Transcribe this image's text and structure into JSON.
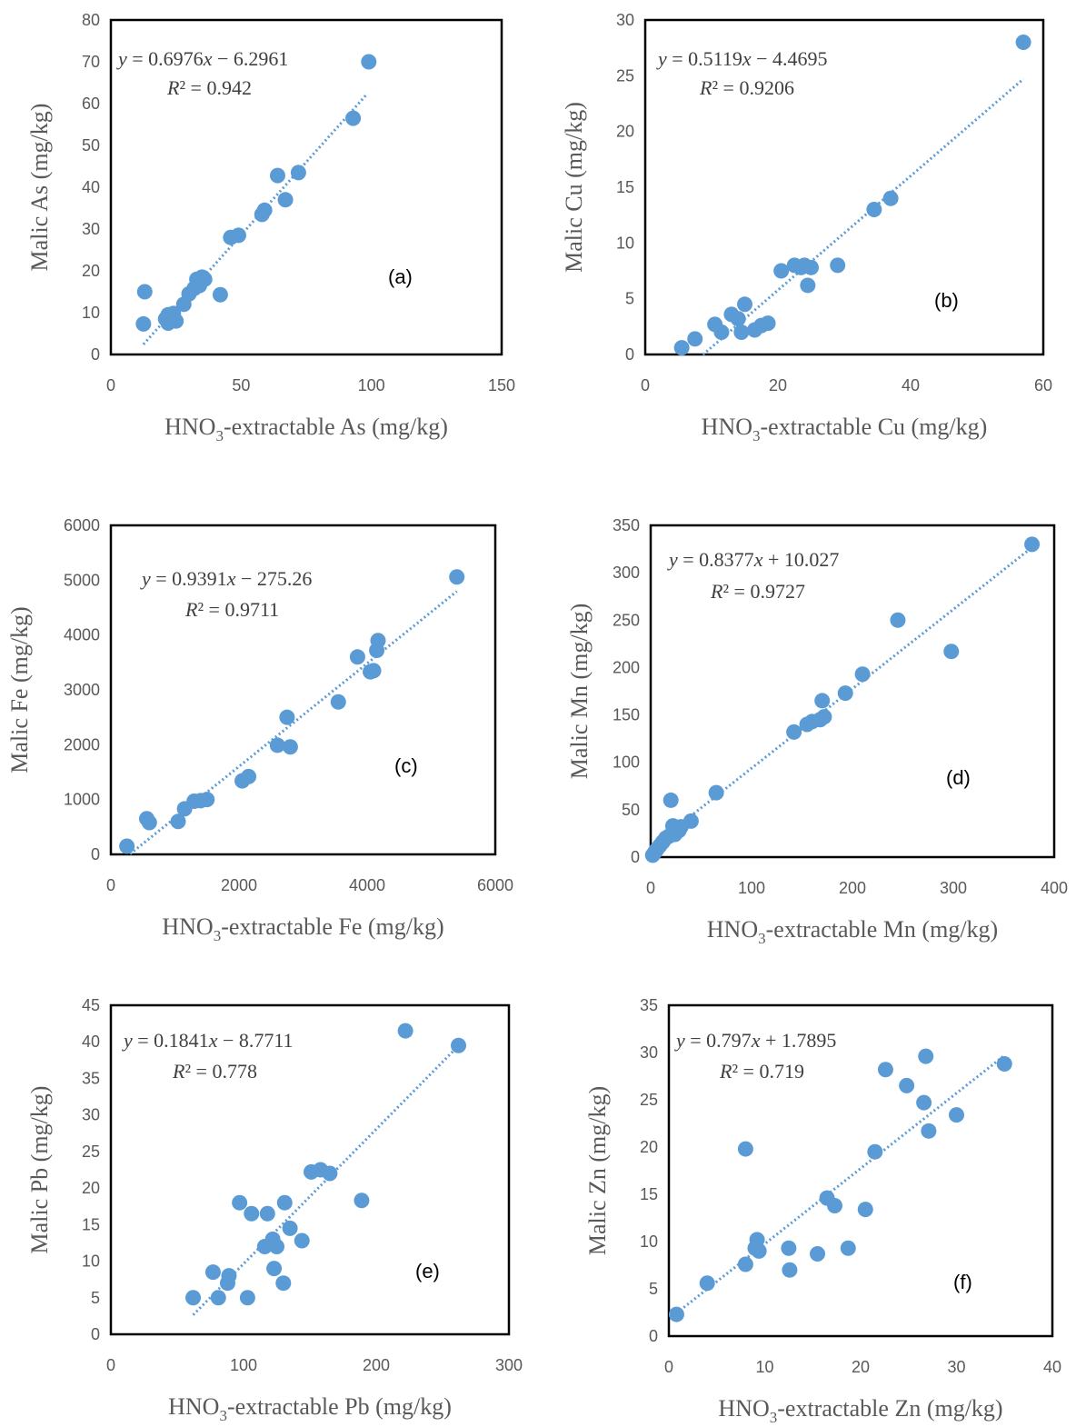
{
  "colors": {
    "marker": "#5B9BD5",
    "trendline": "#5B9BD5",
    "frame": "#000000",
    "text": "#595959"
  },
  "chart_data": [
    {
      "type": "scatter",
      "panel": "(a)",
      "xlabel": "HNO3-extractable As (mg/kg)",
      "xlabel_main": "HNO",
      "xlabel_sub": "3",
      "xlabel_rest": "-extractable As (mg/kg)",
      "ylabel": "Malic As (mg/kg)",
      "xlim": [
        0,
        150
      ],
      "ylim": [
        0,
        80
      ],
      "xticks": [
        0,
        50,
        100,
        150
      ],
      "yticks": [
        0,
        10,
        20,
        30,
        40,
        50,
        60,
        70,
        80
      ],
      "equation": "y = 0.6976x − 6.2961",
      "r2": "R² = 0.942",
      "trend": {
        "slope": 0.6976,
        "intercept": -6.2961,
        "x_range": [
          12.5,
          98
        ]
      },
      "points": [
        [
          12.5,
          7.3
        ],
        [
          13,
          15
        ],
        [
          21,
          8.5
        ],
        [
          22,
          9.5
        ],
        [
          22,
          7.5
        ],
        [
          23,
          8.5
        ],
        [
          24,
          9.8
        ],
        [
          25,
          8
        ],
        [
          28,
          12
        ],
        [
          30,
          14.5
        ],
        [
          32,
          15.8
        ],
        [
          33,
          18
        ],
        [
          34,
          16.5
        ],
        [
          35,
          18.5
        ],
        [
          36,
          18
        ],
        [
          42,
          14.3
        ],
        [
          46,
          28
        ],
        [
          49,
          28.5
        ],
        [
          58,
          33.5
        ],
        [
          59,
          34.5
        ],
        [
          64,
          42.8
        ],
        [
          67,
          37
        ],
        [
          72,
          43.5
        ],
        [
          93,
          56.5
        ],
        [
          99,
          70
        ]
      ]
    },
    {
      "type": "scatter",
      "panel": "(b)",
      "xlabel": "HNO3-extractable Cu (mg/kg)",
      "xlabel_main": "HNO",
      "xlabel_sub": "3",
      "xlabel_rest": "-extractable Cu (mg/kg)",
      "ylabel": "Malic Cu (mg/kg)",
      "xlim": [
        0,
        60
      ],
      "ylim": [
        0,
        30
      ],
      "xticks": [
        0,
        20,
        40,
        60
      ],
      "yticks": [
        0,
        5,
        10,
        15,
        20,
        25,
        30
      ],
      "equation": "y = 0.5119x − 4.4695",
      "r2": "R² = 0.9206",
      "trend": {
        "slope": 0.5119,
        "intercept": -4.4695,
        "x_range": [
          8.7,
          57
        ]
      },
      "points": [
        [
          5.5,
          0.6
        ],
        [
          7.5,
          1.4
        ],
        [
          10.5,
          2.7
        ],
        [
          11.5,
          2
        ],
        [
          13,
          3.6
        ],
        [
          14,
          3.2
        ],
        [
          14.5,
          2
        ],
        [
          15,
          4.5
        ],
        [
          16.5,
          2.2
        ],
        [
          17.5,
          2.6
        ],
        [
          18.5,
          2.8
        ],
        [
          20.5,
          7.5
        ],
        [
          22.5,
          8
        ],
        [
          23.5,
          7.8
        ],
        [
          24,
          8
        ],
        [
          24.5,
          6.2
        ],
        [
          25,
          7.8
        ],
        [
          29,
          8
        ],
        [
          34.5,
          13
        ],
        [
          37,
          14
        ],
        [
          57,
          28
        ]
      ]
    },
    {
      "type": "scatter",
      "panel": "(c)",
      "xlabel": "HNO3-extractable Fe (mg/kg)",
      "xlabel_main": "HNO",
      "xlabel_sub": "3",
      "xlabel_rest": "-extractable Fe (mg/kg)",
      "ylabel": "Malic Fe (mg/kg)",
      "xlim": [
        0,
        6000
      ],
      "ylim": [
        0,
        6000
      ],
      "xticks": [
        0,
        2000,
        4000,
        6000
      ],
      "yticks": [
        0,
        1000,
        2000,
        3000,
        4000,
        5000,
        6000
      ],
      "equation": "y = 0.9391x − 275.26",
      "r2": "R² = 0.9711",
      "trend": {
        "slope": 0.9391,
        "intercept": -275.26,
        "x_range": [
          300,
          5400
        ]
      },
      "points": [
        [
          250,
          150
        ],
        [
          560,
          650
        ],
        [
          600,
          580
        ],
        [
          1050,
          600
        ],
        [
          1150,
          830
        ],
        [
          1300,
          970
        ],
        [
          1400,
          980
        ],
        [
          1500,
          1000
        ],
        [
          2050,
          1340
        ],
        [
          2150,
          1420
        ],
        [
          2600,
          1990
        ],
        [
          2750,
          2500
        ],
        [
          2800,
          1960
        ],
        [
          3550,
          2780
        ],
        [
          3850,
          3600
        ],
        [
          4050,
          3330
        ],
        [
          4100,
          3350
        ],
        [
          4150,
          3720
        ],
        [
          4170,
          3900
        ],
        [
          5400,
          5060
        ]
      ]
    },
    {
      "type": "scatter",
      "panel": "(d)",
      "xlabel": "HNO3-extractable Mn (mg/kg)",
      "xlabel_main": "HNO",
      "xlabel_sub": "3",
      "xlabel_rest": "-extractable Mn (mg/kg)",
      "ylabel": "Malic Mn (mg/kg)",
      "xlim": [
        0,
        400
      ],
      "ylim": [
        0,
        350
      ],
      "xticks": [
        0,
        100,
        200,
        300,
        400
      ],
      "yticks": [
        0,
        50,
        100,
        150,
        200,
        250,
        300,
        350
      ],
      "equation": "y = 0.8377x + 10.027",
      "r2": "R² = 0.9727",
      "trend": {
        "slope": 0.8377,
        "intercept": 10.027,
        "x_range": [
          0,
          378
        ]
      },
      "points": [
        [
          2,
          2
        ],
        [
          4,
          5
        ],
        [
          6,
          8
        ],
        [
          9,
          12
        ],
        [
          12,
          16
        ],
        [
          15,
          20
        ],
        [
          18,
          22
        ],
        [
          20,
          60
        ],
        [
          22,
          33
        ],
        [
          24,
          24
        ],
        [
          28,
          28
        ],
        [
          30,
          32
        ],
        [
          40,
          38
        ],
        [
          65,
          68
        ],
        [
          142,
          132
        ],
        [
          155,
          140
        ],
        [
          160,
          143
        ],
        [
          168,
          145
        ],
        [
          170,
          165
        ],
        [
          172,
          148
        ],
        [
          193,
          173
        ],
        [
          210,
          193
        ],
        [
          245,
          250
        ],
        [
          298,
          217
        ],
        [
          378,
          330
        ]
      ]
    },
    {
      "type": "scatter",
      "panel": "(e)",
      "xlabel": "HNO3-extractable Pb (mg/kg)",
      "xlabel_main": "HNO",
      "xlabel_sub": "3",
      "xlabel_rest": "-extractable Pb (mg/kg)",
      "ylabel": "Malic Pb (mg/kg)",
      "xlim": [
        0,
        300
      ],
      "ylim": [
        0,
        45
      ],
      "xticks": [
        0,
        100,
        200,
        300
      ],
      "yticks": [
        0,
        5,
        10,
        15,
        20,
        25,
        30,
        35,
        40,
        45
      ],
      "equation": "y = 0.1841x − 8.7711",
      "r2": "R² = 0.778",
      "trend": {
        "slope": 0.1841,
        "intercept": -8.7711,
        "x_range": [
          62,
          262
        ]
      },
      "points": [
        [
          62,
          5
        ],
        [
          77,
          8.5
        ],
        [
          81,
          5
        ],
        [
          88,
          7
        ],
        [
          89,
          8
        ],
        [
          97,
          18
        ],
        [
          103,
          5
        ],
        [
          106,
          16.5
        ],
        [
          116,
          12
        ],
        [
          118,
          16.5
        ],
        [
          122,
          13
        ],
        [
          123,
          9
        ],
        [
          125,
          12
        ],
        [
          130,
          7
        ],
        [
          131,
          18
        ],
        [
          135,
          14.5
        ],
        [
          144,
          12.8
        ],
        [
          151,
          22.2
        ],
        [
          158,
          22.5
        ],
        [
          165,
          22
        ],
        [
          189,
          18.3
        ],
        [
          222,
          41.5
        ],
        [
          262,
          39.5
        ]
      ]
    },
    {
      "type": "scatter",
      "panel": "(f)",
      "xlabel": "HNO3-extractable Zn (mg/kg)",
      "xlabel_main": "HNO",
      "xlabel_sub": "3",
      "xlabel_rest": "-extractable Zn (mg/kg)",
      "ylabel": "Malic Zn (mg/kg)",
      "xlim": [
        0,
        40
      ],
      "ylim": [
        0,
        35
      ],
      "xticks": [
        0,
        10,
        20,
        30,
        40
      ],
      "yticks": [
        0,
        5,
        10,
        15,
        20,
        25,
        30,
        35
      ],
      "equation": "y = 0.797x + 1.7895",
      "r2": "R² = 0.719",
      "trend": {
        "slope": 0.797,
        "intercept": 1.7895,
        "x_range": [
          0.8,
          35
        ]
      },
      "points": [
        [
          0.8,
          2.3
        ],
        [
          4,
          5.6
        ],
        [
          8,
          7.6
        ],
        [
          8,
          19.8
        ],
        [
          9,
          9.3
        ],
        [
          9.2,
          10.2
        ],
        [
          9.4,
          9
        ],
        [
          12.5,
          9.3
        ],
        [
          12.6,
          7
        ],
        [
          15.5,
          8.7
        ],
        [
          16.5,
          14.6
        ],
        [
          17.3,
          13.8
        ],
        [
          18.7,
          9.3
        ],
        [
          20.5,
          13.4
        ],
        [
          21.5,
          19.5
        ],
        [
          22.6,
          28.2
        ],
        [
          24.8,
          26.5
        ],
        [
          26.6,
          24.7
        ],
        [
          26.8,
          29.6
        ],
        [
          27.1,
          21.7
        ],
        [
          30,
          23.4
        ],
        [
          35,
          28.8
        ]
      ]
    }
  ]
}
